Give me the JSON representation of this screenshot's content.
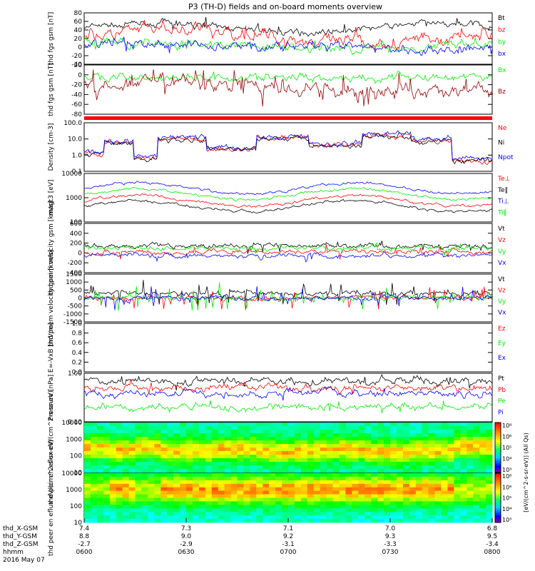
{
  "title": "P3 (TH-D) fields and on-board moments overview",
  "date_label": "2016 May 07",
  "colors": {
    "black": "#000000",
    "red": "#ff0000",
    "green": "#00ee00",
    "blue": "#0000ff",
    "darkred": "#990000"
  },
  "time_axis": {
    "start": "0600",
    "end": "0800",
    "ticks": [
      "0600",
      "0630",
      "0700",
      "0730",
      "0800"
    ]
  },
  "ephemeris": {
    "labels": [
      "thd_X-GSM",
      "thd_Y-GSM",
      "thd_Z-GSM",
      "hhmm"
    ],
    "X": [
      "7.4",
      "7.3",
      "7.1",
      "7.0",
      "6.8"
    ],
    "Y": [
      "8.8",
      "9.0",
      "9.2",
      "9.3",
      "9.5"
    ],
    "Z": [
      "-2.7",
      "-2.9",
      "-3.1",
      "-3.3",
      "-3.4"
    ]
  },
  "colorbar": {
    "top_ticks": [
      "10⁸",
      "10⁶",
      "10⁵",
      "10⁴",
      "10³"
    ],
    "bottom_ticks": [
      "10⁸",
      "10⁶",
      "10⁵",
      "10⁴",
      "10³"
    ],
    "label": "[eV/(cm^2-s-sr-eV)] (All Qs)"
  },
  "chart_data": [
    {
      "type": "line",
      "ylabel": "thd fgs gsm [nT]",
      "ylim": [
        -40,
        80
      ],
      "yticks": [
        "80",
        "60",
        "40",
        "20",
        "0",
        "-20",
        "-40"
      ],
      "series": [
        {
          "name": "Bt",
          "color": "black"
        },
        {
          "name": "bz",
          "color": "red"
        },
        {
          "name": "by",
          "color": "green"
        },
        {
          "name": "bx",
          "color": "blue"
        }
      ]
    },
    {
      "type": "line",
      "ylabel": "thd fgs gsm [nT]",
      "ylim": [
        -80,
        40
      ],
      "yticks": [
        "20",
        "0",
        "-20",
        "-40",
        "-60",
        "-80"
      ],
      "series": [
        {
          "name": "Bx",
          "color": "green"
        },
        {
          "name": "Bz",
          "color": "darkred"
        }
      ]
    },
    {
      "type": "line",
      "ylabel": "Density [cm-3]",
      "scale": "log",
      "ylim": [
        0.1,
        200
      ],
      "yticks": [
        "100.0",
        "10.0",
        "1.0",
        "0.1"
      ],
      "series": [
        {
          "name": "Ne",
          "color": "red"
        },
        {
          "name": "Ni",
          "color": "black"
        },
        {
          "name": "Npot",
          "color": "blue"
        }
      ]
    },
    {
      "type": "line",
      "ylabel": "magt3 [eV]",
      "scale": "log",
      "ylim": [
        20,
        10000
      ],
      "yticks": [
        "10000",
        "1000",
        "100"
      ],
      "series": [
        {
          "name": "Te⊥",
          "color": "red"
        },
        {
          "name": "Te‖",
          "color": "black"
        },
        {
          "name": "Ti⊥",
          "color": "blue"
        },
        {
          "name": "Ti‖",
          "color": "green"
        }
      ]
    },
    {
      "type": "line",
      "ylabel": "thd peim velocity gsm [km/s]",
      "ylim": [
        -400,
        600
      ],
      "yticks": [
        "600",
        "400",
        "200",
        "0",
        "-200",
        "-400"
      ],
      "series": [
        {
          "name": "Vt",
          "color": "black"
        },
        {
          "name": "Vz",
          "color": "red"
        },
        {
          "name": "Vy",
          "color": "green"
        },
        {
          "name": "Vx",
          "color": "blue"
        }
      ]
    },
    {
      "type": "line",
      "ylabel": "thd peem velocity gsm [km/s]",
      "ylim": [
        -1500,
        1500
      ],
      "yticks": [
        "1500",
        "1000",
        "500",
        "0",
        "-500",
        "-1000",
        "-1500"
      ],
      "series": [
        {
          "name": "Vt",
          "color": "black"
        },
        {
          "name": "Vz",
          "color": "red"
        },
        {
          "name": "Vy",
          "color": "green"
        },
        {
          "name": "Vx",
          "color": "blue"
        }
      ]
    },
    {
      "type": "line",
      "ylabel": "E=-VxB [mV/m]",
      "ylim": [
        0,
        1
      ],
      "yticks": [
        "1.0",
        "0.8",
        "0.6",
        "0.4",
        "0.2",
        "0.0"
      ],
      "series": [
        {
          "name": "Ez",
          "color": "red"
        },
        {
          "name": "Ey",
          "color": "green"
        },
        {
          "name": "Ex",
          "color": "blue"
        }
      ]
    },
    {
      "type": "line",
      "ylabel": "Pressure [nPa]",
      "scale": "log",
      "ylim": [
        0.02,
        2
      ],
      "yticks": [
        "1.00",
        "0.10"
      ],
      "series": [
        {
          "name": "Pt",
          "color": "black"
        },
        {
          "name": "Pb",
          "color": "red"
        },
        {
          "name": "Pe",
          "color": "green"
        },
        {
          "name": "Pi",
          "color": "blue"
        }
      ]
    },
    {
      "type": "heatmap",
      "ylabel": "thd peir en eflux eV/(cm^2-s-sr-eV)",
      "scale": "log",
      "ylim": [
        5,
        20000
      ],
      "yticks": [
        "10000",
        "1000",
        "100",
        "10"
      ]
    },
    {
      "type": "heatmap",
      "ylabel": "thd peer en eflux eV/(cm^2-s-sr-eV)",
      "scale": "log",
      "ylim": [
        5,
        20000
      ],
      "yticks": [
        "10000",
        "1000",
        "100",
        "10"
      ]
    }
  ]
}
